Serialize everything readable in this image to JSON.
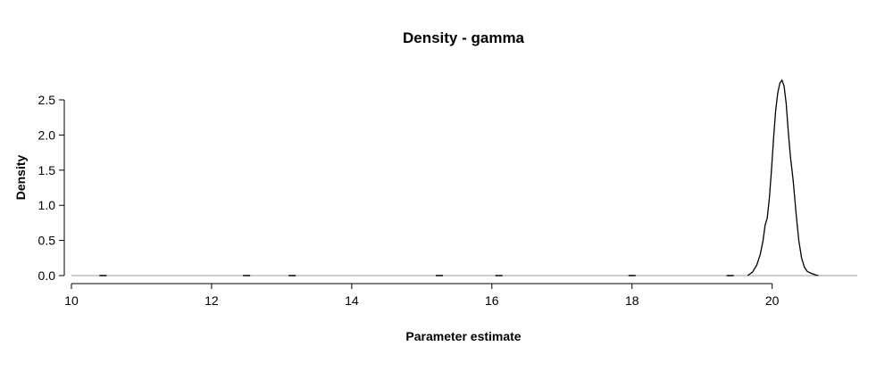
{
  "chart_data": {
    "type": "line",
    "title": "Density - gamma",
    "xlabel": "Parameter estimate",
    "ylabel": "Density",
    "xlim": [
      10,
      21.1
    ],
    "ylim": [
      0,
      2.5
    ],
    "x_ticks": [
      10,
      12,
      14,
      16,
      18,
      20
    ],
    "y_ticks": [
      0,
      0.5,
      1,
      1.5,
      2,
      2.5
    ],
    "y_tick_labels": [
      "0.0",
      "0.5",
      "1.0",
      "1.5",
      "2.0",
      "2.5"
    ],
    "grid": false,
    "legend": "none",
    "baseline": 0,
    "series": [
      {
        "x": [
          19.65,
          19.72,
          19.78,
          19.83,
          19.87,
          19.9,
          19.93,
          19.96,
          19.99,
          20.02,
          20.05,
          20.08,
          20.11,
          20.14,
          20.17,
          20.2,
          20.23,
          20.26,
          20.3,
          20.34,
          20.38,
          20.42,
          20.46,
          20.5,
          20.56,
          20.62,
          20.66
        ],
        "y": [
          0.0,
          0.05,
          0.15,
          0.3,
          0.5,
          0.72,
          0.82,
          1.1,
          1.5,
          1.95,
          2.35,
          2.6,
          2.74,
          2.78,
          2.7,
          2.45,
          2.05,
          1.7,
          1.35,
          0.9,
          0.5,
          0.25,
          0.12,
          0.06,
          0.03,
          0.01,
          0.0
        ]
      }
    ],
    "rug": [
      10.45,
      12.5,
      13.15,
      15.25,
      16.1,
      18.0,
      19.4
    ]
  }
}
